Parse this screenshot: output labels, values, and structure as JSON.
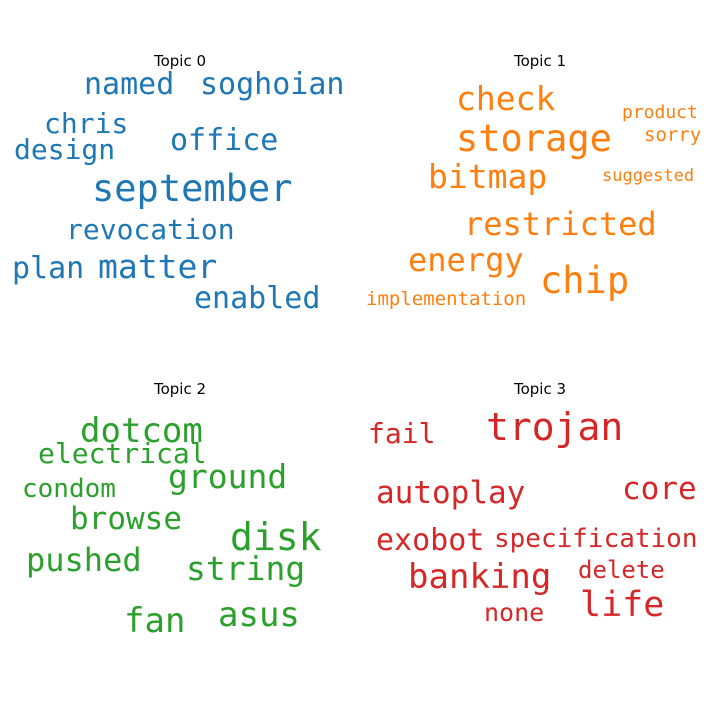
{
  "chart_data": [
    {
      "type": "wordcloud",
      "title": "Topic 0",
      "color": "#1f77b4",
      "words": [
        {
          "text": "named",
          "size": 30
        },
        {
          "text": "soghoian",
          "size": 30
        },
        {
          "text": "chris",
          "size": 28
        },
        {
          "text": "office",
          "size": 30
        },
        {
          "text": "design",
          "size": 28
        },
        {
          "text": "september",
          "size": 37
        },
        {
          "text": "revocation",
          "size": 28
        },
        {
          "text": "plan",
          "size": 30
        },
        {
          "text": "matter",
          "size": 33
        },
        {
          "text": "enabled",
          "size": 30
        }
      ]
    },
    {
      "type": "wordcloud",
      "title": "Topic 1",
      "color": "#ff7f0e",
      "words": [
        {
          "text": "check",
          "size": 33
        },
        {
          "text": "product",
          "size": 18
        },
        {
          "text": "storage",
          "size": 37
        },
        {
          "text": "sorry",
          "size": 19
        },
        {
          "text": "bitmap",
          "size": 33
        },
        {
          "text": "suggested",
          "size": 17
        },
        {
          "text": "restricted",
          "size": 32
        },
        {
          "text": "energy",
          "size": 32
        },
        {
          "text": "chip",
          "size": 37
        },
        {
          "text": "implementation",
          "size": 19
        }
      ]
    },
    {
      "type": "wordcloud",
      "title": "Topic 2",
      "color": "#2ca02c",
      "words": [
        {
          "text": "dotcom",
          "size": 34
        },
        {
          "text": "electrical",
          "size": 28
        },
        {
          "text": "ground",
          "size": 33
        },
        {
          "text": "condom",
          "size": 26
        },
        {
          "text": "browse",
          "size": 31
        },
        {
          "text": "disk",
          "size": 38
        },
        {
          "text": "pushed",
          "size": 32
        },
        {
          "text": "string",
          "size": 33
        },
        {
          "text": "fan",
          "size": 34
        },
        {
          "text": "asus",
          "size": 34
        }
      ]
    },
    {
      "type": "wordcloud",
      "title": "Topic 3",
      "color": "#d62728",
      "words": [
        {
          "text": "fail",
          "size": 28
        },
        {
          "text": "trojan",
          "size": 38
        },
        {
          "text": "autoplay",
          "size": 31
        },
        {
          "text": "core",
          "size": 31
        },
        {
          "text": "exobot",
          "size": 30
        },
        {
          "text": "specification",
          "size": 26
        },
        {
          "text": "banking",
          "size": 34
        },
        {
          "text": "delete",
          "size": 24
        },
        {
          "text": "life",
          "size": 35
        },
        {
          "text": "none",
          "size": 25
        }
      ]
    }
  ]
}
